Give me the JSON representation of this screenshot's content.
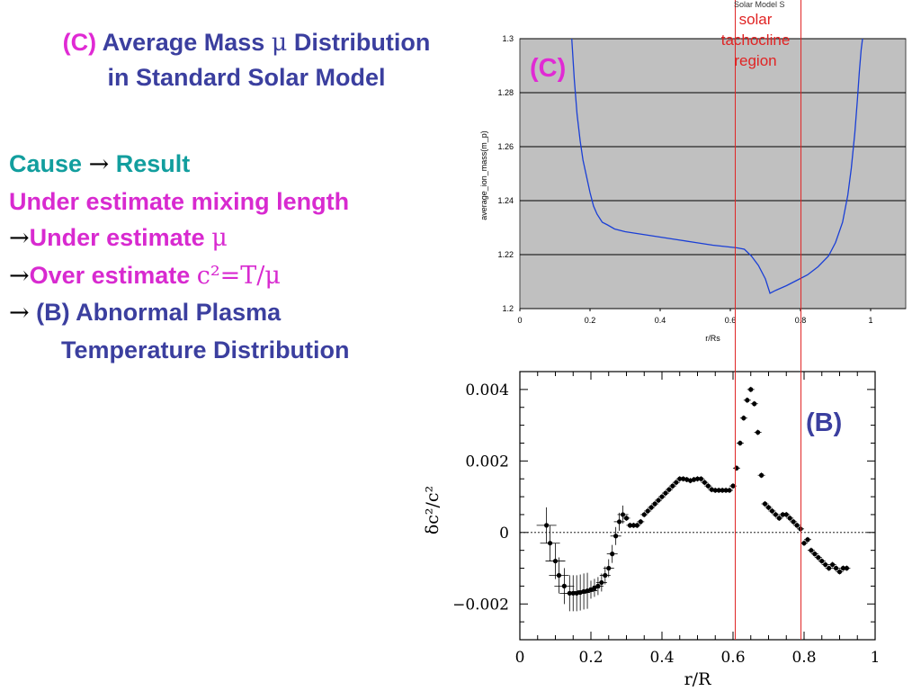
{
  "slide": {
    "title_tag": "(C)",
    "title_part1": "Average Mass ",
    "title_mu": "μ",
    "title_part2": " Distribution",
    "title_line2": "in Standard Solar Model",
    "cause": "Cause",
    "arrow": "→",
    "result": "Result",
    "line2": "Under estimate mixing length",
    "line3_text": "Under estimate ",
    "line3_mu": "μ",
    "line4_text": "Over estimate ",
    "line4_eq": "c²=T/μ",
    "line5_text": " (B) Abnormal Plasma",
    "line6_text": "Temperature Distribution",
    "label_c": "(C)",
    "label_b": "(B)",
    "tachocline_label_lines": [
      "solar",
      "tachocline",
      "region"
    ],
    "top_note": "Solar Model S"
  },
  "colors": {
    "title": "#3b3f9f",
    "accent_magenta": "#e02ad4",
    "teal": "#129e9e",
    "tachocline_line": "#e02424",
    "top_plot_bg": "#c0c0c0",
    "top_curve": "#1a3fd6",
    "bottom_points": "#000000"
  },
  "tachocline_lines_x": [
    0.605,
    0.79
  ],
  "chart_data": [
    {
      "type": "line",
      "title": "",
      "xlabel": "r/Rs",
      "ylabel": "average_ion_mass(m_p)",
      "xlim": [
        0,
        1.1
      ],
      "ylim": [
        1.2,
        1.3
      ],
      "xticks": [
        0,
        0.2,
        0.4,
        0.6,
        0.8,
        1
      ],
      "xtick_labels": [
        "0",
        "0.2",
        "0.4",
        "0.6",
        "0.8",
        "1"
      ],
      "yticks": [
        1.2,
        1.22,
        1.24,
        1.26,
        1.28,
        1.3
      ],
      "ytick_labels": [
        "1.2",
        "1.22",
        "1.24",
        "1.26",
        "1.28",
        "1.3"
      ],
      "grid": "horizontal",
      "series": [
        {
          "x": [
            0.148,
            0.155,
            0.163,
            0.172,
            0.18,
            0.19,
            0.2,
            0.21,
            0.22,
            0.235,
            0.25,
            0.27,
            0.3,
            0.35,
            0.4,
            0.45,
            0.5,
            0.55,
            0.6,
            0.62,
            0.64,
            0.66,
            0.68,
            0.7,
            0.713,
            0.73,
            0.76,
            0.79,
            0.82,
            0.85,
            0.88,
            0.9,
            0.92,
            0.935,
            0.945,
            0.955,
            0.962,
            0.968,
            0.973,
            0.977
          ],
          "y": [
            1.3,
            1.285,
            1.272,
            1.262,
            1.255,
            1.249,
            1.243,
            1.238,
            1.235,
            1.232,
            1.231,
            1.2295,
            1.2285,
            1.2275,
            1.2265,
            1.2255,
            1.2245,
            1.2235,
            1.2228,
            1.2225,
            1.222,
            1.2195,
            1.216,
            1.211,
            1.2057,
            1.2068,
            1.2085,
            1.2105,
            1.2125,
            1.2155,
            1.2195,
            1.2245,
            1.232,
            1.242,
            1.252,
            1.265,
            1.277,
            1.288,
            1.296,
            1.3
          ]
        }
      ]
    },
    {
      "type": "scatter",
      "title": "",
      "xlabel": "r/R",
      "ylabel": "δc²/c²",
      "xlim": [
        0,
        1
      ],
      "ylim": [
        -0.003,
        0.0045
      ],
      "xticks": [
        0,
        0.2,
        0.4,
        0.6,
        0.8,
        1
      ],
      "xtick_labels": [
        "0",
        "0.2",
        "0.4",
        "0.6",
        "0.8",
        "1"
      ],
      "yticks": [
        -0.002,
        0,
        0.002,
        0.004
      ],
      "ytick_labels": [
        "−0.002",
        "0",
        "0.002",
        "0.004"
      ],
      "zero_line": true,
      "series": [
        {
          "x": [
            0.075,
            0.085,
            0.1,
            0.11,
            0.125,
            0.14,
            0.15,
            0.16,
            0.17,
            0.18,
            0.19,
            0.2,
            0.21,
            0.22,
            0.23,
            0.24,
            0.25,
            0.26,
            0.27,
            0.28,
            0.29,
            0.3,
            0.31,
            0.32,
            0.33,
            0.34,
            0.35,
            0.36,
            0.37,
            0.38,
            0.39,
            0.4,
            0.41,
            0.42,
            0.43,
            0.44,
            0.45,
            0.46,
            0.47,
            0.48,
            0.49,
            0.5,
            0.51,
            0.52,
            0.53,
            0.54,
            0.55,
            0.56,
            0.57,
            0.58,
            0.59,
            0.6,
            0.61,
            0.62,
            0.63,
            0.64,
            0.65,
            0.66,
            0.67,
            0.68,
            0.69,
            0.7,
            0.71,
            0.72,
            0.73,
            0.74,
            0.75,
            0.76,
            0.77,
            0.78,
            0.79,
            0.8,
            0.81,
            0.82,
            0.83,
            0.84,
            0.85,
            0.86,
            0.87,
            0.88,
            0.89,
            0.9,
            0.91,
            0.92
          ],
          "y": [
            0.0002,
            -0.0003,
            -0.0008,
            -0.0012,
            -0.0015,
            -0.0017,
            -0.0017,
            -0.0017,
            -0.00168,
            -0.00165,
            -0.00163,
            -0.0016,
            -0.00155,
            -0.0015,
            -0.0014,
            -0.0012,
            -0.001,
            -0.0006,
            -0.0001,
            0.0003,
            0.0005,
            0.0004,
            0.0002,
            0.0002,
            0.0002,
            0.0003,
            0.0005,
            0.0006,
            0.0007,
            0.0008,
            0.0009,
            0.001,
            0.0011,
            0.0012,
            0.0013,
            0.0014,
            0.0015,
            0.0015,
            0.00148,
            0.00145,
            0.00148,
            0.0015,
            0.0015,
            0.0014,
            0.0013,
            0.0012,
            0.00118,
            0.00118,
            0.00118,
            0.00118,
            0.00118,
            0.0013,
            0.0018,
            0.0025,
            0.0032,
            0.0037,
            0.004,
            0.0036,
            0.0028,
            0.0016,
            0.0008,
            0.0007,
            0.0006,
            0.0005,
            0.0004,
            0.0005,
            0.0005,
            0.0004,
            0.0003,
            0.0002,
            0.0001,
            -0.0003,
            -0.0002,
            -0.0005,
            -0.0006,
            -0.0007,
            -0.0008,
            -0.0009,
            -0.001,
            -0.0009,
            -0.001,
            -0.0011,
            -0.001,
            -0.001
          ]
        }
      ]
    }
  ]
}
